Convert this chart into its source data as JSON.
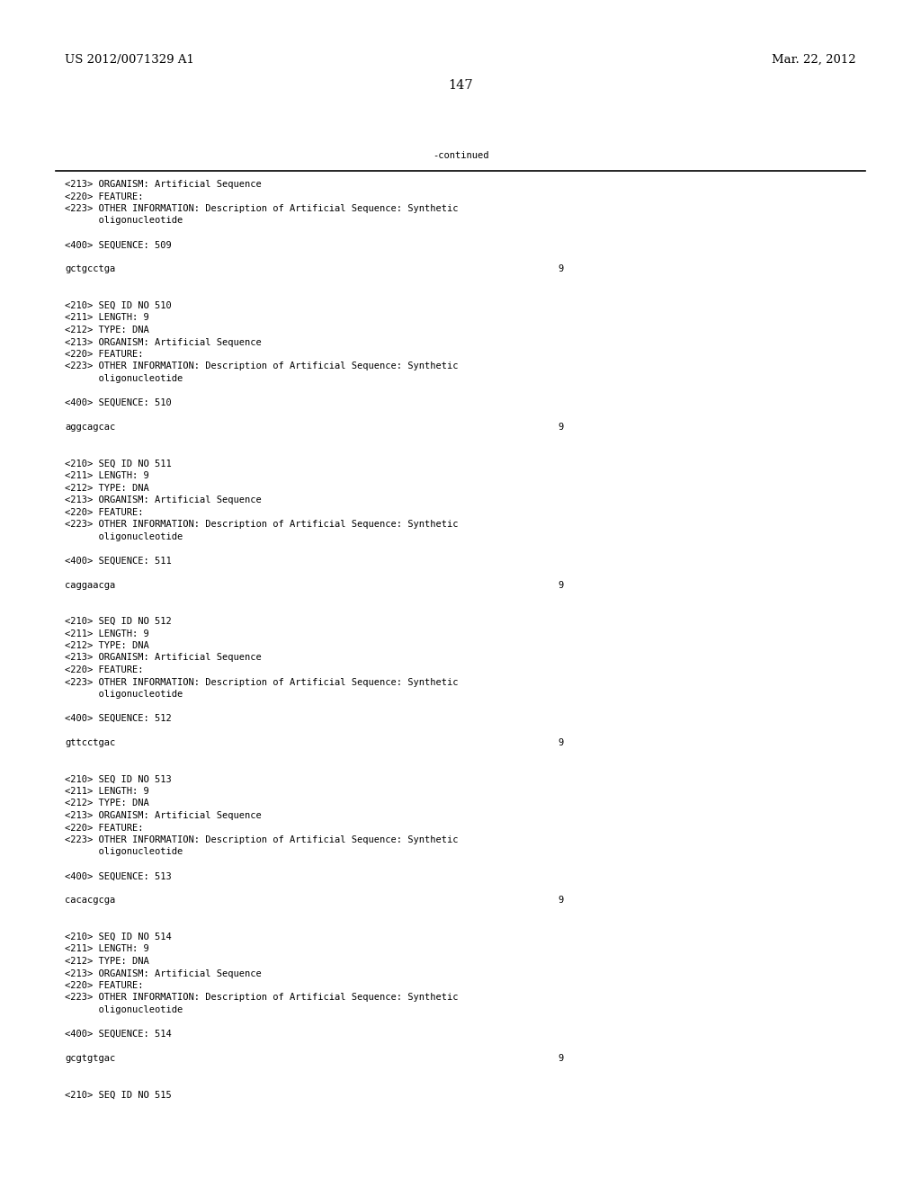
{
  "header_left": "US 2012/0071329 A1",
  "header_right": "Mar. 22, 2012",
  "page_number": "147",
  "continued_text": "-continued",
  "background_color": "#ffffff",
  "text_color": "#000000",
  "font_size_header": 9.5,
  "font_size_body": 7.5,
  "font_size_page": 10.5,
  "content_blocks": [
    {
      "type": "text",
      "text": "<213> ORGANISM: Artificial Sequence"
    },
    {
      "type": "text",
      "text": "<220> FEATURE:"
    },
    {
      "type": "text",
      "text": "<223> OTHER INFORMATION: Description of Artificial Sequence: Synthetic"
    },
    {
      "type": "text",
      "text": "      oligonucleotide"
    },
    {
      "type": "blank"
    },
    {
      "type": "text",
      "text": "<400> SEQUENCE: 509"
    },
    {
      "type": "blank"
    },
    {
      "type": "seq",
      "seq": "gctgcctga",
      "num": "9"
    },
    {
      "type": "blank"
    },
    {
      "type": "blank"
    },
    {
      "type": "text",
      "text": "<210> SEQ ID NO 510"
    },
    {
      "type": "text",
      "text": "<211> LENGTH: 9"
    },
    {
      "type": "text",
      "text": "<212> TYPE: DNA"
    },
    {
      "type": "text",
      "text": "<213> ORGANISM: Artificial Sequence"
    },
    {
      "type": "text",
      "text": "<220> FEATURE:"
    },
    {
      "type": "text",
      "text": "<223> OTHER INFORMATION: Description of Artificial Sequence: Synthetic"
    },
    {
      "type": "text",
      "text": "      oligonucleotide"
    },
    {
      "type": "blank"
    },
    {
      "type": "text",
      "text": "<400> SEQUENCE: 510"
    },
    {
      "type": "blank"
    },
    {
      "type": "seq",
      "seq": "aggcagcac",
      "num": "9"
    },
    {
      "type": "blank"
    },
    {
      "type": "blank"
    },
    {
      "type": "text",
      "text": "<210> SEQ ID NO 511"
    },
    {
      "type": "text",
      "text": "<211> LENGTH: 9"
    },
    {
      "type": "text",
      "text": "<212> TYPE: DNA"
    },
    {
      "type": "text",
      "text": "<213> ORGANISM: Artificial Sequence"
    },
    {
      "type": "text",
      "text": "<220> FEATURE:"
    },
    {
      "type": "text",
      "text": "<223> OTHER INFORMATION: Description of Artificial Sequence: Synthetic"
    },
    {
      "type": "text",
      "text": "      oligonucleotide"
    },
    {
      "type": "blank"
    },
    {
      "type": "text",
      "text": "<400> SEQUENCE: 511"
    },
    {
      "type": "blank"
    },
    {
      "type": "seq",
      "seq": "caggaacga",
      "num": "9"
    },
    {
      "type": "blank"
    },
    {
      "type": "blank"
    },
    {
      "type": "text",
      "text": "<210> SEQ ID NO 512"
    },
    {
      "type": "text",
      "text": "<211> LENGTH: 9"
    },
    {
      "type": "text",
      "text": "<212> TYPE: DNA"
    },
    {
      "type": "text",
      "text": "<213> ORGANISM: Artificial Sequence"
    },
    {
      "type": "text",
      "text": "<220> FEATURE:"
    },
    {
      "type": "text",
      "text": "<223> OTHER INFORMATION: Description of Artificial Sequence: Synthetic"
    },
    {
      "type": "text",
      "text": "      oligonucleotide"
    },
    {
      "type": "blank"
    },
    {
      "type": "text",
      "text": "<400> SEQUENCE: 512"
    },
    {
      "type": "blank"
    },
    {
      "type": "seq",
      "seq": "gttcctgac",
      "num": "9"
    },
    {
      "type": "blank"
    },
    {
      "type": "blank"
    },
    {
      "type": "text",
      "text": "<210> SEQ ID NO 513"
    },
    {
      "type": "text",
      "text": "<211> LENGTH: 9"
    },
    {
      "type": "text",
      "text": "<212> TYPE: DNA"
    },
    {
      "type": "text",
      "text": "<213> ORGANISM: Artificial Sequence"
    },
    {
      "type": "text",
      "text": "<220> FEATURE:"
    },
    {
      "type": "text",
      "text": "<223> OTHER INFORMATION: Description of Artificial Sequence: Synthetic"
    },
    {
      "type": "text",
      "text": "      oligonucleotide"
    },
    {
      "type": "blank"
    },
    {
      "type": "text",
      "text": "<400> SEQUENCE: 513"
    },
    {
      "type": "blank"
    },
    {
      "type": "seq",
      "seq": "cacacgcga",
      "num": "9"
    },
    {
      "type": "blank"
    },
    {
      "type": "blank"
    },
    {
      "type": "text",
      "text": "<210> SEQ ID NO 514"
    },
    {
      "type": "text",
      "text": "<211> LENGTH: 9"
    },
    {
      "type": "text",
      "text": "<212> TYPE: DNA"
    },
    {
      "type": "text",
      "text": "<213> ORGANISM: Artificial Sequence"
    },
    {
      "type": "text",
      "text": "<220> FEATURE:"
    },
    {
      "type": "text",
      "text": "<223> OTHER INFORMATION: Description of Artificial Sequence: Synthetic"
    },
    {
      "type": "text",
      "text": "      oligonucleotide"
    },
    {
      "type": "blank"
    },
    {
      "type": "text",
      "text": "<400> SEQUENCE: 514"
    },
    {
      "type": "blank"
    },
    {
      "type": "seq",
      "seq": "gcgtgtgac",
      "num": "9"
    },
    {
      "type": "blank"
    },
    {
      "type": "blank"
    },
    {
      "type": "text",
      "text": "<210> SEQ ID NO 515"
    }
  ]
}
